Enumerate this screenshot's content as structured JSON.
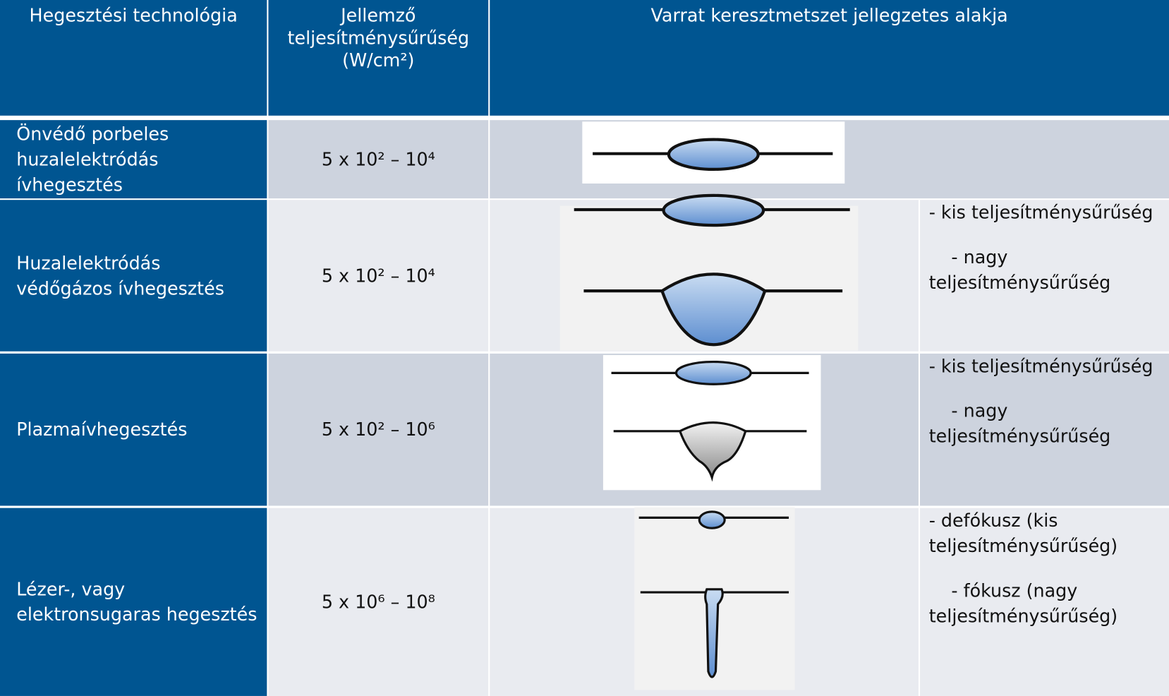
{
  "header": {
    "technology": "Hegesztési technológia",
    "density": "Jellemző teljesítménysűrűség (W/cm²)",
    "shape": "Varrat keresztmetszet jellegzetes alakja"
  },
  "rows": [
    {
      "technology": "Önvédő porbeles huzalelektródás ívhegesztés",
      "density": "5 x 10² – 10⁴",
      "notes": []
    },
    {
      "technology": "Huzalelektródás védőgázos ívhegesztés",
      "density": "5 x 10² – 10⁴",
      "notes": [
        "- kis teljesítménysűrűség",
        "- nagy teljesítménysűrűség"
      ]
    },
    {
      "technology": "Plazmaívhegesztés",
      "density": "5 x 10² – 10⁶",
      "notes": [
        "- kis teljesítménysűrűség",
        "- nagy teljesítménysűrűség"
      ]
    },
    {
      "technology": "Lézer-, vagy elektronsugaras hegesztés",
      "density": "5 x 10⁶ – 10⁸",
      "notes": [
        "- defókusz (kis teljesítménysűrűség)",
        "- fókusz (nagy teljesítménysűrűség)"
      ]
    }
  ]
}
